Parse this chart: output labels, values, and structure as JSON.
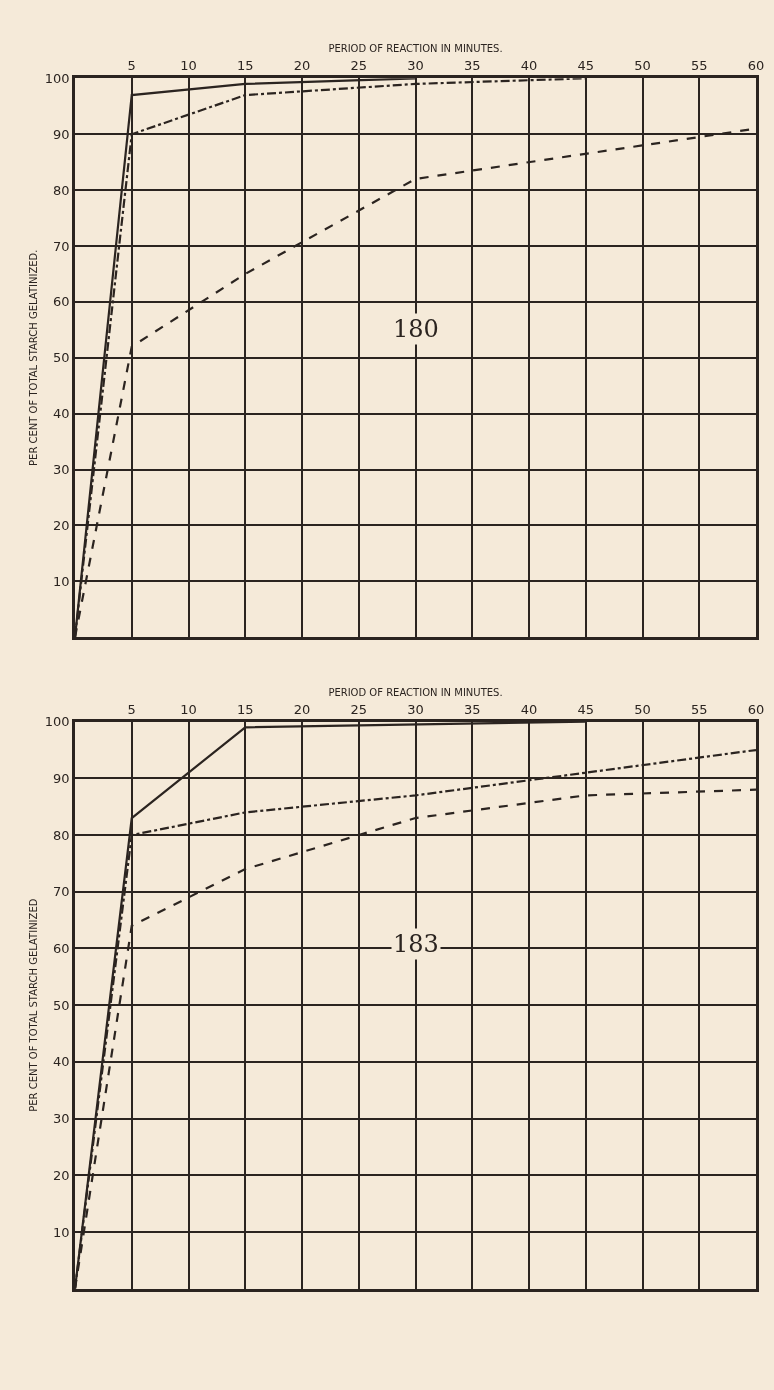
{
  "chart_data": [
    {
      "type": "line",
      "xlabel": "PERIOD OF REACTION IN MINUTES.",
      "ylabel": "PER CENT OF TOTAL STARCH GELATINIZED.",
      "annotations": [
        "180"
      ],
      "xlim": [
        0,
        60
      ],
      "xticks": [
        5,
        10,
        15,
        20,
        25,
        30,
        35,
        40,
        45,
        50,
        55,
        60
      ],
      "ylim": [
        0,
        100
      ],
      "yticks": [
        10,
        20,
        30,
        40,
        50,
        60,
        70,
        80,
        90,
        100
      ],
      "grid": true,
      "marker": "none",
      "series": [
        {
          "color": "#2b2420",
          "line_style": "solid",
          "x": [
            0,
            5,
            15,
            30
          ],
          "values": [
            0,
            97,
            99,
            100
          ]
        },
        {
          "color": "#2b2420",
          "line_style": "dashdot",
          "x": [
            0,
            5,
            15,
            30,
            45
          ],
          "values": [
            0,
            90,
            97,
            99,
            100
          ]
        },
        {
          "color": "#2b2420",
          "line_style": "dashed",
          "x": [
            0,
            5,
            15,
            30,
            60
          ],
          "values": [
            0,
            52,
            65,
            82,
            91
          ]
        }
      ]
    },
    {
      "type": "line",
      "xlabel": "PERIOD OF REACTION IN MINUTES.",
      "ylabel": "PER CENT OF TOTAL STARCH GELATINIZED",
      "annotations": [
        "183"
      ],
      "xlim": [
        0,
        60
      ],
      "xticks": [
        5,
        10,
        15,
        20,
        25,
        30,
        35,
        40,
        45,
        50,
        55,
        60
      ],
      "ylim": [
        0,
        100
      ],
      "yticks": [
        10,
        20,
        30,
        40,
        50,
        60,
        70,
        80,
        90,
        100
      ],
      "grid": true,
      "marker": "none",
      "series": [
        {
          "color": "#2b2420",
          "line_style": "solid",
          "x": [
            0,
            5,
            15,
            45
          ],
          "values": [
            0,
            83,
            99,
            100
          ]
        },
        {
          "color": "#2b2420",
          "line_style": "dashdot",
          "x": [
            0,
            5,
            15,
            30,
            45,
            60
          ],
          "values": [
            0,
            80,
            84,
            87,
            91,
            95
          ]
        },
        {
          "color": "#2b2420",
          "line_style": "dashed",
          "x": [
            0,
            5,
            15,
            30,
            45,
            60
          ],
          "values": [
            0,
            64,
            74,
            83,
            87,
            88
          ]
        }
      ]
    }
  ]
}
